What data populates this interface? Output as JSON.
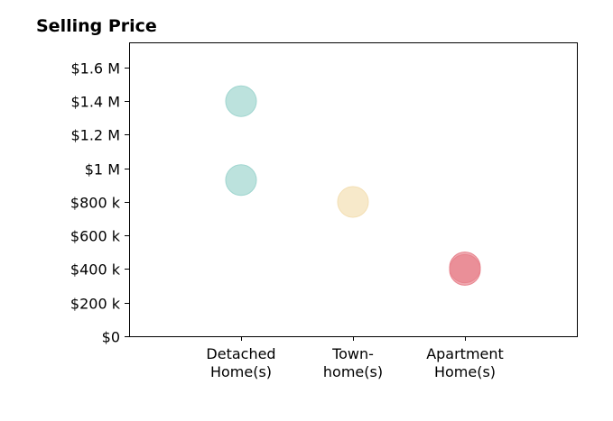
{
  "chart_data": {
    "type": "scatter",
    "title": "Selling Price",
    "xlabel": "",
    "ylabel": "",
    "categories": [
      [
        "Detached",
        "Home(s)"
      ],
      [
        "Town-",
        "home(s)"
      ],
      [
        "Apartment",
        "Home(s)"
      ]
    ],
    "ylim": [
      0,
      1750000
    ],
    "yticks": [
      {
        "value": 0,
        "label": "$0"
      },
      {
        "value": 200000,
        "label": "$200 k"
      },
      {
        "value": 400000,
        "label": "$400 k"
      },
      {
        "value": 600000,
        "label": "$600 k"
      },
      {
        "value": 800000,
        "label": "$800 k"
      },
      {
        "value": 1000000,
        "label": "$1 M"
      },
      {
        "value": 1200000,
        "label": "$1.2 M"
      },
      {
        "value": 1400000,
        "label": "$1.4 M"
      },
      {
        "value": 1600000,
        "label": "$1.6 M"
      }
    ],
    "grid": false,
    "points": [
      {
        "category": 0,
        "value": 1400000,
        "color": "#9fd5cf"
      },
      {
        "category": 0,
        "value": 930000,
        "color": "#9fd5cf"
      },
      {
        "category": 1,
        "value": 800000,
        "color": "#f3dfb4"
      },
      {
        "category": 2,
        "value": 410000,
        "color": "#e8848e"
      },
      {
        "category": 2,
        "value": 395000,
        "color": "#e8848e"
      }
    ]
  }
}
